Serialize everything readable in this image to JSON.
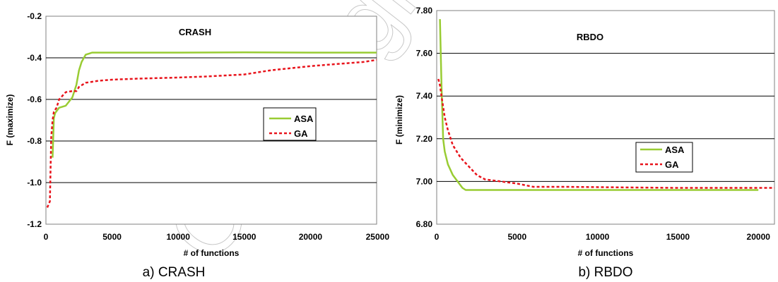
{
  "watermark": "Copyright by DI",
  "chart_data": [
    {
      "type": "line",
      "title": "CRASH",
      "caption": "a) CRASH",
      "xlabel": "# of functions",
      "ylabel": "F (maximize)",
      "xlim": [
        0,
        25000
      ],
      "ylim": [
        -1.2,
        -0.2
      ],
      "xticks": [
        "0",
        "5000",
        "10000",
        "15000",
        "20000",
        "25000"
      ],
      "yticks": [
        "-1.2",
        "-1.0",
        "-0.8",
        "-0.6",
        "-0.4",
        "-0.2"
      ],
      "grid": "horizontal",
      "legend_position": "right",
      "series": [
        {
          "name": "ASA",
          "color": "#99cc33",
          "style": "solid",
          "points": [
            [
              500,
              -0.88
            ],
            [
              600,
              -0.69
            ],
            [
              700,
              -0.665
            ],
            [
              1000,
              -0.64
            ],
            [
              1500,
              -0.63
            ],
            [
              2000,
              -0.59
            ],
            [
              2300,
              -0.53
            ],
            [
              2500,
              -0.46
            ],
            [
              2700,
              -0.42
            ],
            [
              3000,
              -0.385
            ],
            [
              3500,
              -0.375
            ],
            [
              5000,
              -0.375
            ],
            [
              10000,
              -0.375
            ],
            [
              15000,
              -0.374
            ],
            [
              20000,
              -0.375
            ],
            [
              25000,
              -0.375
            ]
          ]
        },
        {
          "name": "GA",
          "color": "#e8141c",
          "style": "dashed",
          "points": [
            [
              100,
              -1.12
            ],
            [
              300,
              -1.09
            ],
            [
              400,
              -0.78
            ],
            [
              500,
              -0.7
            ],
            [
              600,
              -0.66
            ],
            [
              800,
              -0.64
            ],
            [
              1000,
              -0.6
            ],
            [
              1500,
              -0.565
            ],
            [
              2000,
              -0.56
            ],
            [
              2300,
              -0.56
            ],
            [
              2500,
              -0.54
            ],
            [
              3000,
              -0.52
            ],
            [
              4000,
              -0.51
            ],
            [
              5000,
              -0.505
            ],
            [
              7000,
              -0.5
            ],
            [
              10000,
              -0.495
            ],
            [
              12000,
              -0.49
            ],
            [
              15000,
              -0.48
            ],
            [
              17000,
              -0.46
            ],
            [
              20000,
              -0.44
            ],
            [
              22000,
              -0.43
            ],
            [
              24000,
              -0.42
            ],
            [
              25000,
              -0.41
            ]
          ]
        }
      ]
    },
    {
      "type": "line",
      "title": "RBDO",
      "caption": "b) RBDO",
      "xlabel": "# of functions",
      "ylabel": "F (minimize)",
      "xlim": [
        0,
        21000
      ],
      "ylim": [
        6.8,
        7.8
      ],
      "xticks": [
        "0",
        "5000",
        "10000",
        "15000",
        "20000"
      ],
      "yticks": [
        "6.80",
        "7.00",
        "7.20",
        "7.40",
        "7.60",
        "7.80"
      ],
      "grid": "horizontal",
      "legend_position": "right",
      "series": [
        {
          "name": "ASA",
          "color": "#99cc33",
          "style": "solid",
          "points": [
            [
              200,
              7.76
            ],
            [
              300,
              7.45
            ],
            [
              400,
              7.2
            ],
            [
              500,
              7.14
            ],
            [
              700,
              7.08
            ],
            [
              1000,
              7.03
            ],
            [
              1300,
              7.0
            ],
            [
              1600,
              6.97
            ],
            [
              1800,
              6.96
            ],
            [
              2500,
              6.96
            ],
            [
              5000,
              6.96
            ],
            [
              10000,
              6.96
            ],
            [
              15000,
              6.96
            ],
            [
              20000,
              6.96
            ]
          ]
        },
        {
          "name": "GA",
          "color": "#e8141c",
          "style": "dashed",
          "points": [
            [
              100,
              7.48
            ],
            [
              200,
              7.45
            ],
            [
              300,
              7.4
            ],
            [
              500,
              7.3
            ],
            [
              700,
              7.24
            ],
            [
              1000,
              7.17
            ],
            [
              1500,
              7.11
            ],
            [
              2000,
              7.07
            ],
            [
              2500,
              7.03
            ],
            [
              3000,
              7.01
            ],
            [
              4000,
              7.0
            ],
            [
              5000,
              6.99
            ],
            [
              6000,
              6.975
            ],
            [
              8000,
              6.975
            ],
            [
              12000,
              6.972
            ],
            [
              15000,
              6.97
            ],
            [
              21000,
              6.97
            ]
          ]
        }
      ]
    }
  ]
}
